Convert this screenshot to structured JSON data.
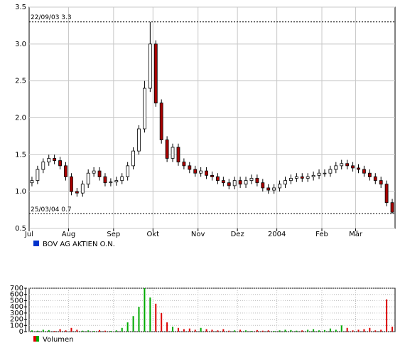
{
  "chart_data": [
    {
      "type": "candlestick",
      "categories": [
        "Jul",
        null,
        null,
        null,
        null,
        null,
        null,
        "Aug",
        null,
        null,
        null,
        null,
        null,
        null,
        null,
        "Sep",
        null,
        null,
        null,
        null,
        null,
        null,
        "Okt",
        null,
        null,
        null,
        null,
        null,
        null,
        null,
        "Nov",
        null,
        null,
        null,
        null,
        null,
        null,
        "Dez",
        null,
        null,
        null,
        null,
        null,
        null,
        "2004",
        null,
        null,
        null,
        null,
        null,
        null,
        null,
        "Feb",
        null,
        null,
        null,
        null,
        null,
        "Mär",
        null,
        null,
        null,
        null,
        null,
        null
      ],
      "series": [
        {
          "name": "BOV AG AKTIEN O.N.",
          "color": "#0033cc",
          "open": [
            1.12,
            1.15,
            1.3,
            1.4,
            1.45,
            1.42,
            1.35,
            1.2,
            1.0,
            0.98,
            1.1,
            1.25,
            1.28,
            1.2,
            1.12,
            1.13,
            1.15,
            1.2,
            1.35,
            1.55,
            1.85,
            2.4,
            3.0,
            2.2,
            1.7,
            1.45,
            1.6,
            1.4,
            1.35,
            1.3,
            1.25,
            1.28,
            1.22,
            1.2,
            1.15,
            1.12,
            1.08,
            1.15,
            1.1,
            1.15,
            1.18,
            1.12,
            1.05,
            1.02,
            1.05,
            1.1,
            1.15,
            1.18,
            1.2,
            1.18,
            1.2,
            1.22,
            1.25,
            1.25,
            1.3,
            1.35,
            1.38,
            1.35,
            1.32,
            1.3,
            1.25,
            1.2,
            1.15,
            1.1,
            0.85
          ],
          "high": [
            1.2,
            1.35,
            1.45,
            1.5,
            1.5,
            1.47,
            1.4,
            1.25,
            1.05,
            1.15,
            1.3,
            1.33,
            1.33,
            1.25,
            1.18,
            1.2,
            1.25,
            1.4,
            1.6,
            1.9,
            2.5,
            3.3,
            3.05,
            2.25,
            1.75,
            1.65,
            1.65,
            1.45,
            1.4,
            1.35,
            1.33,
            1.33,
            1.27,
            1.25,
            1.2,
            1.17,
            1.2,
            1.2,
            1.2,
            1.23,
            1.23,
            1.17,
            1.1,
            1.1,
            1.15,
            1.2,
            1.23,
            1.25,
            1.25,
            1.25,
            1.27,
            1.3,
            1.3,
            1.35,
            1.4,
            1.43,
            1.43,
            1.4,
            1.37,
            1.35,
            1.3,
            1.25,
            1.2,
            1.15,
            0.9
          ],
          "low": [
            1.07,
            1.1,
            1.25,
            1.35,
            1.37,
            1.3,
            1.15,
            0.95,
            0.93,
            0.93,
            1.05,
            1.2,
            1.15,
            1.07,
            1.07,
            1.08,
            1.1,
            1.15,
            1.3,
            1.5,
            1.8,
            2.35,
            2.15,
            1.65,
            1.4,
            1.4,
            1.35,
            1.3,
            1.25,
            1.2,
            1.2,
            1.17,
            1.15,
            1.1,
            1.07,
            1.03,
            1.03,
            1.05,
            1.05,
            1.1,
            1.07,
            1.0,
            0.97,
            0.97,
            1.0,
            1.05,
            1.1,
            1.13,
            1.13,
            1.13,
            1.15,
            1.17,
            1.2,
            1.2,
            1.25,
            1.3,
            1.3,
            1.27,
            1.25,
            1.2,
            1.15,
            1.1,
            1.05,
            0.8,
            0.7
          ],
          "close": [
            1.15,
            1.3,
            1.4,
            1.45,
            1.42,
            1.35,
            1.2,
            1.0,
            0.98,
            1.1,
            1.25,
            1.28,
            1.2,
            1.12,
            1.13,
            1.15,
            1.2,
            1.35,
            1.55,
            1.85,
            2.4,
            3.0,
            2.2,
            1.7,
            1.45,
            1.6,
            1.4,
            1.35,
            1.3,
            1.25,
            1.28,
            1.22,
            1.2,
            1.15,
            1.12,
            1.08,
            1.15,
            1.1,
            1.15,
            1.18,
            1.12,
            1.05,
            1.02,
            1.05,
            1.1,
            1.15,
            1.18,
            1.2,
            1.18,
            1.2,
            1.22,
            1.25,
            1.25,
            1.3,
            1.35,
            1.38,
            1.35,
            1.32,
            1.3,
            1.25,
            1.2,
            1.15,
            1.1,
            0.85,
            0.72
          ]
        }
      ],
      "ylim": [
        0.5,
        3.5
      ],
      "yticks": [
        0.5,
        {
          "value": 1,
          "label": "1.0"
        },
        1.5,
        {
          "value": 2,
          "label": "2.0"
        },
        2.5,
        {
          "value": 3,
          "label": "3.0"
        },
        3.5
      ],
      "annotations": [
        {
          "text": "22/09/03  3.3",
          "value": 3.3
        },
        {
          "text": "25/03/04  0.7",
          "value": 0.7
        }
      ],
      "up_color": "#ffffff",
      "down_color": "#aa0000",
      "grid": true
    },
    {
      "type": "bar",
      "series": [
        {
          "name": "Volumen",
          "colors": [
            "#dd0000",
            "#00aa00"
          ],
          "values": [
            20,
            15,
            30,
            25,
            10,
            40,
            20,
            60,
            30,
            15,
            20,
            10,
            25,
            15,
            10,
            20,
            60,
            150,
            250,
            400,
            700,
            550,
            450,
            300,
            150,
            80,
            60,
            40,
            50,
            30,
            60,
            40,
            30,
            20,
            40,
            15,
            20,
            30,
            20,
            10,
            25,
            15,
            20,
            10,
            20,
            30,
            25,
            15,
            20,
            30,
            40,
            20,
            25,
            50,
            30,
            100,
            60,
            20,
            30,
            40,
            60,
            20,
            30,
            520,
            80
          ]
        }
      ],
      "ylim": [
        0,
        700
      ],
      "yticks": [
        0,
        100,
        200,
        300,
        400,
        500,
        600,
        700
      ],
      "grid": true
    }
  ]
}
